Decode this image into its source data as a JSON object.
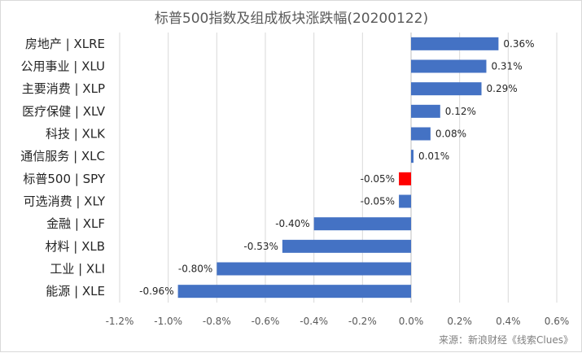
{
  "chart_data": {
    "type": "bar",
    "orientation": "horizontal",
    "title": "标普500指数及组成板块涨跌幅(20200122)",
    "categories": [
      "房地产 | XLRE",
      "公用事业 | XLU",
      "主要消费 | XLP",
      "医疗保健 | XLV",
      "科技 | XLK",
      "通信服务 | XLC",
      "标普500 | SPY",
      "可选消费 | XLY",
      "金融 | XLF",
      "材料 | XLB",
      "工业 | XLI",
      "能源 | XLE"
    ],
    "values": [
      0.36,
      0.31,
      0.29,
      0.12,
      0.08,
      0.01,
      -0.05,
      -0.05,
      -0.4,
      -0.53,
      -0.8,
      -0.96
    ],
    "value_labels": [
      "0.36%",
      "0.31%",
      "0.29%",
      "0.12%",
      "0.08%",
      "0.01%",
      "-0.05%",
      "-0.05%",
      "-0.40%",
      "-0.53%",
      "-0.80%",
      "-0.96%"
    ],
    "highlight_category": "标普500 | SPY",
    "xlim": [
      -1.2,
      0.6
    ],
    "xticks": [
      -1.2,
      -1.0,
      -0.8,
      -0.6,
      -0.4,
      -0.2,
      0.0,
      0.2,
      0.4,
      0.6
    ],
    "xtick_labels": [
      "-1.2%",
      "-1.0%",
      "-0.8%",
      "-0.6%",
      "-0.4%",
      "-0.2%",
      "0.0%",
      "0.2%",
      "0.4%",
      "0.6%"
    ],
    "xlabel": "",
    "ylabel": "",
    "grid": true,
    "legend": "none",
    "source_note": "来源：新浪财经《线索Clues》"
  },
  "colors": {
    "bar": "#4472c4",
    "highlight": "#ff0000",
    "grid": "#d9d9d9",
    "text": "#262626",
    "title": "#595959"
  }
}
